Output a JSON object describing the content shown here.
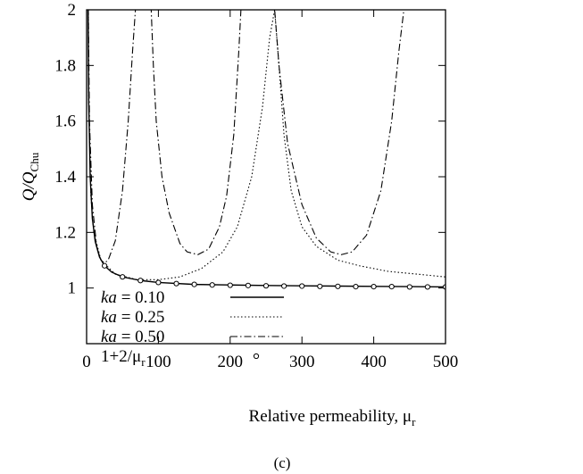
{
  "chart_data": {
    "type": "line",
    "xlabel": "Relative permeability, μ",
    "xlabel_sub": "r",
    "ylabel": "Q/Q",
    "ylabel_sub": "Chu",
    "caption": "(c)",
    "xlim": [
      0,
      500
    ],
    "ylim": [
      0.8,
      2.0
    ],
    "xticks": [
      0,
      100,
      200,
      300,
      400,
      500
    ],
    "xtick_labels": [
      "0",
      "100",
      "200",
      "300",
      "400",
      "500"
    ],
    "yticks": [
      1.0,
      1.2,
      1.4,
      1.6,
      1.8,
      2.0
    ],
    "ytick_labels": [
      "1",
      "1.2",
      "1.4",
      "1.6",
      "1.8",
      "2"
    ],
    "grid": false,
    "legend_position": "bottom-left",
    "series": [
      {
        "name": "ka = 0.10",
        "style": "solid",
        "x": [
          1,
          2,
          3,
          5,
          8,
          12,
          18,
          25,
          35,
          50,
          75,
          100,
          150,
          200,
          250,
          300,
          350,
          400,
          450,
          500
        ],
        "y": [
          2.9,
          2.0,
          1.667,
          1.4,
          1.25,
          1.167,
          1.111,
          1.08,
          1.057,
          1.04,
          1.027,
          1.02,
          1.013,
          1.011,
          1.009,
          1.008,
          1.007,
          1.006,
          1.005,
          1.004
        ]
      },
      {
        "name": "ka = 0.25",
        "style": "dotted",
        "x": [
          1,
          3,
          6,
          10,
          20,
          40,
          70,
          100,
          130,
          160,
          190,
          210,
          230,
          245,
          255,
          262,
          268,
          275,
          285,
          300,
          320,
          350,
          380,
          420,
          460,
          500
        ],
        "y": [
          2.9,
          1.67,
          1.33,
          1.2,
          1.1,
          1.05,
          1.03,
          1.03,
          1.04,
          1.07,
          1.13,
          1.22,
          1.4,
          1.65,
          1.9,
          2.0,
          1.8,
          1.55,
          1.35,
          1.22,
          1.15,
          1.1,
          1.08,
          1.06,
          1.05,
          1.04
        ]
      },
      {
        "name": "ka = 0.50",
        "style": "dashdot",
        "x": [
          1,
          2,
          4,
          8,
          14,
          20,
          25,
          30,
          40,
          50,
          58,
          64,
          68,
          70,
          90,
          93,
          97,
          105,
          115,
          130,
          140,
          155,
          170,
          185,
          195,
          205,
          212,
          215,
          262,
          268,
          280,
          300,
          320,
          340,
          355,
          370,
          390,
          410,
          425,
          435,
          442
        ],
        "y": [
          2.9,
          2.1,
          1.6,
          1.3,
          1.15,
          1.1,
          1.09,
          1.1,
          1.17,
          1.35,
          1.6,
          1.85,
          2.0,
          2.0,
          2.0,
          1.8,
          1.6,
          1.4,
          1.27,
          1.16,
          1.13,
          1.12,
          1.14,
          1.22,
          1.33,
          1.55,
          1.85,
          2.0,
          2.0,
          1.8,
          1.52,
          1.3,
          1.18,
          1.13,
          1.12,
          1.13,
          1.19,
          1.35,
          1.6,
          1.85,
          2.0
        ]
      },
      {
        "name": "1+2/μ",
        "name_sub": "r",
        "style": "markers",
        "x": [
          25,
          50,
          75,
          100,
          125,
          150,
          175,
          200,
          225,
          250,
          275,
          300,
          325,
          350,
          375,
          400,
          425,
          450,
          475,
          500
        ],
        "y": [
          1.08,
          1.04,
          1.027,
          1.02,
          1.016,
          1.013,
          1.011,
          1.01,
          1.009,
          1.008,
          1.007,
          1.007,
          1.006,
          1.006,
          1.005,
          1.005,
          1.005,
          1.004,
          1.004,
          1.004
        ]
      }
    ],
    "legend_entries": [
      {
        "label_italic": "ka",
        "label_rest": " = 0.10"
      },
      {
        "label_italic": "ka",
        "label_rest": " = 0.25"
      },
      {
        "label_italic": "ka",
        "label_rest": " = 0.50"
      },
      {
        "label_italic": "",
        "label_rest": "1+2/μ",
        "label_sub": "r"
      }
    ]
  }
}
